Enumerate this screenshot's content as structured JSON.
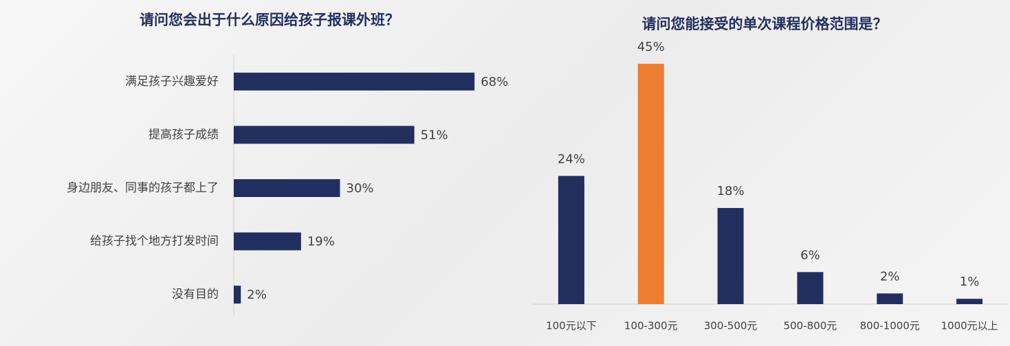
{
  "chart_data": [
    {
      "type": "hbar",
      "title": "请问您会出于什么原因给孩子报课外班？",
      "categories": [
        "满足孩子兴趣爱好",
        "提高孩子成绩",
        "身边朋友、同事的孩子都上了",
        "给孩子找个地方打发时间",
        "没有目的"
      ],
      "values": [
        68,
        51,
        30,
        19,
        2
      ],
      "value_labels": [
        "68%",
        "51%",
        "30%",
        "19%",
        "2%"
      ],
      "color": "#222f5e",
      "xlim": [
        0,
        100
      ]
    },
    {
      "type": "bar",
      "title": "请问您能接受的单次课程价格范围是？",
      "categories": [
        "100元以下",
        "100-300元",
        "300-500元",
        "500-800元",
        "800-1000元",
        "1000元以上"
      ],
      "values": [
        24,
        45,
        18,
        6,
        2,
        1
      ],
      "value_labels": [
        "24%",
        "45%",
        "18%",
        "6%",
        "2%",
        "1%"
      ],
      "colors": [
        "#222f5e",
        "#ed7d31",
        "#222f5e",
        "#222f5e",
        "#222f5e",
        "#222f5e"
      ],
      "ylim": [
        0,
        50
      ]
    }
  ]
}
